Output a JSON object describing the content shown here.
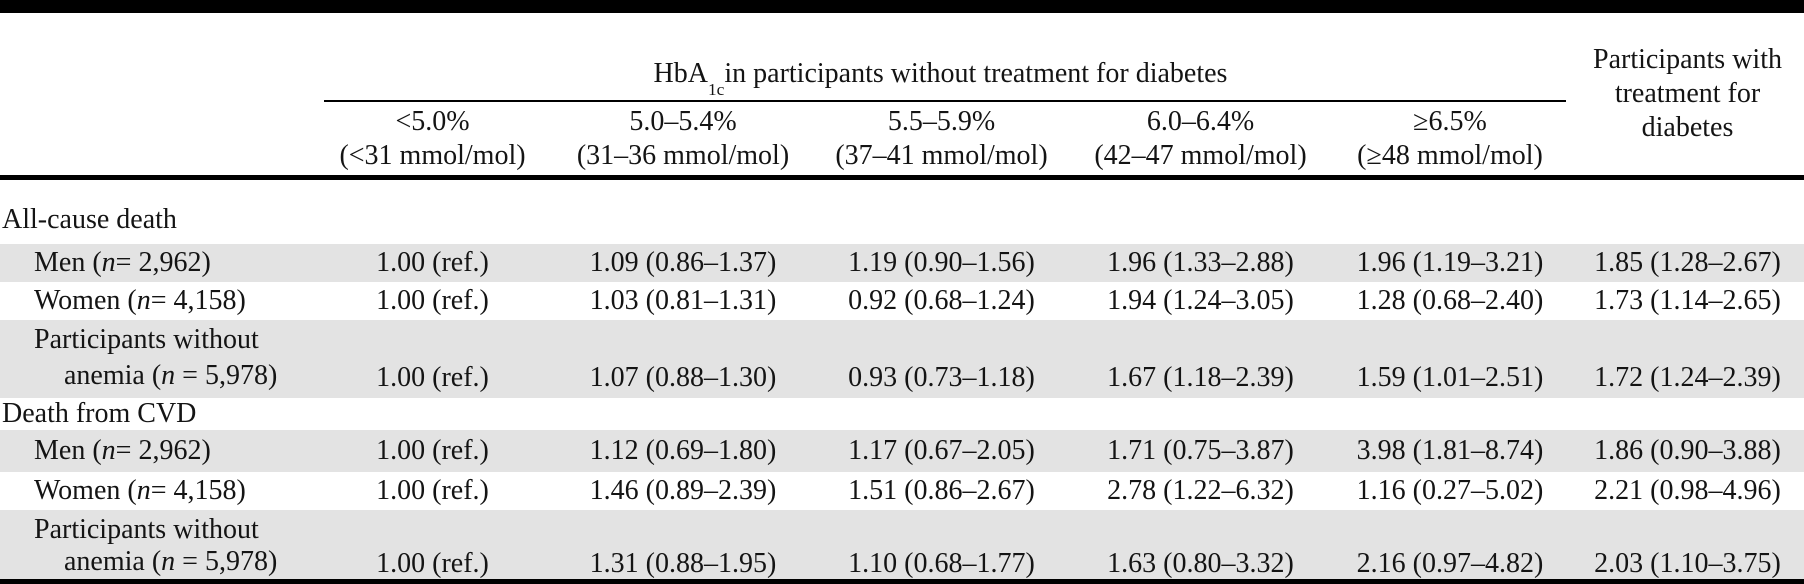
{
  "header": {
    "group_title_prefix": "HbA",
    "group_title_sub": "1c",
    "group_title_suffix": " in participants without treatment for diabetes",
    "treated_line1": "Participants with",
    "treated_line2": "treatment for",
    "treated_line3": "diabetes"
  },
  "columns": [
    {
      "pct": "<5.0%",
      "mmol": "(<31 mmol/mol)"
    },
    {
      "pct": "5.0–5.4%",
      "mmol": "(31–36 mmol/mol)"
    },
    {
      "pct": "5.5–5.9%",
      "mmol": "(37–41 mmol/mol)"
    },
    {
      "pct": "6.0–6.4%",
      "mmol": "(42–47 mmol/mol)"
    },
    {
      "pct": "≥6.5%",
      "mmol": "(≥48 mmol/mol)"
    }
  ],
  "sections": [
    {
      "title": "All-cause death",
      "rows": [
        {
          "label_prefix": "Men (",
          "label_italic": "n",
          "label_suffix": " = 2,962)",
          "values": [
            "1.00 (ref.)",
            "1.09 (0.86–1.37)",
            "1.19 (0.90–1.56)",
            "1.96 (1.33–2.88)",
            "1.96 (1.19–3.21)",
            "1.85 (1.28–2.67)"
          ]
        },
        {
          "label_prefix": "Women (",
          "label_italic": "n",
          "label_suffix": " = 4,158)",
          "values": [
            "1.00 (ref.)",
            "1.03 (0.81–1.31)",
            "0.92 (0.68–1.24)",
            "1.94 (1.24–3.05)",
            "1.28 (0.68–2.40)",
            "1.73 (1.14–2.65)"
          ]
        },
        {
          "label_line1": "Participants without",
          "label_prefix": "anemia (",
          "label_italic": "n",
          "label_suffix": " = 5,978)",
          "values": [
            "1.00 (ref.)",
            "1.07 (0.88–1.30)",
            "0.93 (0.73–1.18)",
            "1.67 (1.18–2.39)",
            "1.59 (1.01–2.51)",
            "1.72 (1.24–2.39)"
          ]
        }
      ]
    },
    {
      "title": "Death from CVD",
      "rows": [
        {
          "label_prefix": "Men (",
          "label_italic": "n",
          "label_suffix": " = 2,962)",
          "values": [
            "1.00 (ref.)",
            "1.12 (0.69–1.80)",
            "1.17 (0.67–2.05)",
            "1.71 (0.75–3.87)",
            "3.98 (1.81–8.74)",
            "1.86 (0.90–3.88)"
          ]
        },
        {
          "label_prefix": "Women (",
          "label_italic": "n",
          "label_suffix": " = 4,158)",
          "values": [
            "1.00 (ref.)",
            "1.46 (0.89–2.39)",
            "1.51 (0.86–2.67)",
            "2.78 (1.22–6.32)",
            "1.16 (0.27–5.02)",
            "2.21 (0.98–4.96)"
          ]
        },
        {
          "label_line1": "Participants without",
          "label_prefix": "anemia (",
          "label_italic": "n",
          "label_suffix": " = 5,978)",
          "values": [
            "1.00 (ref.)",
            "1.31 (0.88–1.95)",
            "1.10 (0.68–1.77)",
            "1.63 (0.80–3.32)",
            "2.16 (0.97–4.82)",
            "2.03 (1.10–3.75)"
          ]
        }
      ]
    }
  ],
  "colors": {
    "stripe": "#e3e3e3",
    "rule": "#000000"
  }
}
